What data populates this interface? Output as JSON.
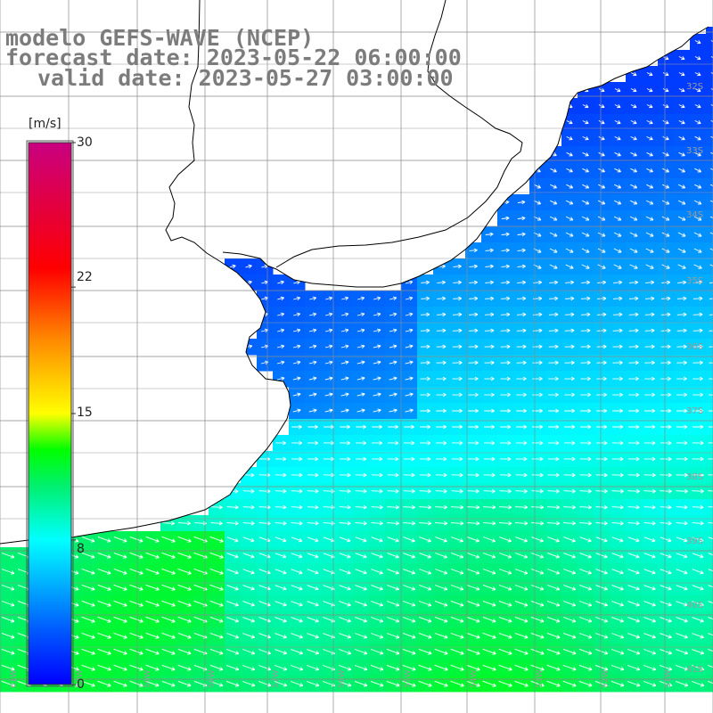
{
  "header": {
    "line1": "modelo GEFS-WAVE (NCEP)",
    "line2": "forecast date: 2023-05-22 06:00:00",
    "line3": "valid date: 2023-05-27 03:00:00"
  },
  "colorbar": {
    "unit": "[m/s]",
    "min": 0,
    "max": 30,
    "tick_labels": [
      "30",
      "22",
      "15",
      "8",
      "0"
    ],
    "tick_values": [
      30,
      22,
      15,
      8,
      0
    ],
    "colors": [
      "#0000ff",
      "#00a0ff",
      "#00ffff",
      "#00ff00",
      "#ffff00",
      "#ff8000",
      "#ff0000",
      "#c00080"
    ]
  },
  "graticule": {
    "lat_labels": [
      "32S",
      "33S",
      "34S",
      "35S",
      "36S",
      "37S",
      "38S",
      "39S",
      "40S",
      "41S"
    ],
    "lon_labels": [
      "61W",
      "60W",
      "59W",
      "58W",
      "57W",
      "56W",
      "55W",
      "54W",
      "53W",
      "52W",
      "51W"
    ]
  },
  "field": {
    "variable": "wind speed and direction",
    "land_color": "#ffffff",
    "coast_color": "#000000"
  }
}
